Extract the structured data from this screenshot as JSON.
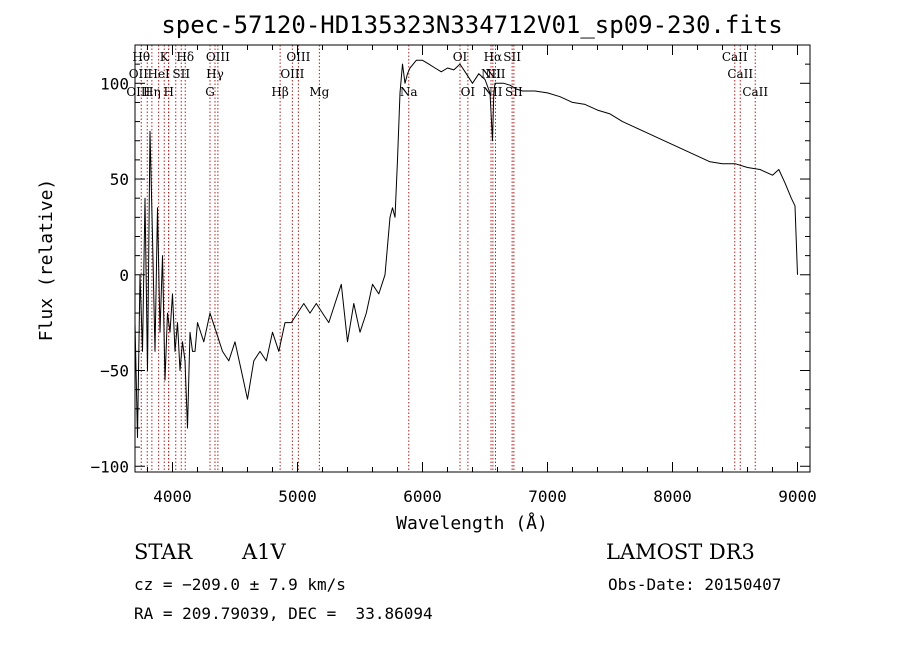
{
  "chart_data": {
    "type": "line",
    "title": "spec-57120-HD135323N334712V01_sp09-230.fits",
    "xlabel": "Wavelength (Å)",
    "ylabel": "Flux (relative)",
    "xlim": [
      3700,
      9100
    ],
    "ylim": [
      -103,
      120
    ],
    "xticks": [
      4000,
      5000,
      6000,
      7000,
      8000,
      9000
    ],
    "yticks": [
      -100,
      -50,
      0,
      50,
      100
    ],
    "xtick_labels": [
      "4000",
      "5000",
      "6000",
      "7000",
      "8000",
      "9000"
    ],
    "ytick_labels": [
      "−100",
      "−50",
      "0",
      "50",
      "100"
    ],
    "series": [
      {
        "name": "flux",
        "x": [
          3700,
          3720,
          3740,
          3760,
          3780,
          3800,
          3820,
          3840,
          3860,
          3880,
          3900,
          3920,
          3940,
          3960,
          3980,
          4000,
          4020,
          4040,
          4060,
          4080,
          4100,
          4120,
          4140,
          4160,
          4180,
          4200,
          4250,
          4300,
          4350,
          4400,
          4450,
          4500,
          4550,
          4600,
          4650,
          4700,
          4750,
          4800,
          4850,
          4900,
          4950,
          5000,
          5050,
          5100,
          5150,
          5200,
          5250,
          5300,
          5350,
          5400,
          5450,
          5500,
          5550,
          5600,
          5650,
          5700,
          5720,
          5740,
          5760,
          5780,
          5800,
          5820,
          5840,
          5860,
          5880,
          5900,
          5950,
          6000,
          6050,
          6100,
          6150,
          6200,
          6250,
          6300,
          6350,
          6400,
          6450,
          6500,
          6540,
          6560,
          6570,
          6580,
          6600,
          6650,
          6700,
          6750,
          6800,
          6900,
          7000,
          7100,
          7200,
          7300,
          7400,
          7500,
          7600,
          7700,
          7800,
          7900,
          8000,
          8100,
          8200,
          8300,
          8400,
          8500,
          8600,
          8700,
          8800,
          8850,
          8900,
          8950,
          8980,
          9000
        ],
        "y": [
          -25,
          -85,
          0,
          -40,
          40,
          -50,
          75,
          20,
          -40,
          35,
          -30,
          10,
          -55,
          -20,
          -30,
          -10,
          -40,
          -25,
          -50,
          -35,
          -45,
          -80,
          -30,
          -40,
          -40,
          -25,
          -35,
          -20,
          -30,
          -40,
          -45,
          -35,
          -50,
          -65,
          -45,
          -40,
          -45,
          -30,
          -40,
          -25,
          -25,
          -20,
          -15,
          -20,
          -15,
          -20,
          -25,
          -15,
          -5,
          -35,
          -15,
          -30,
          -20,
          -5,
          -10,
          0,
          15,
          30,
          35,
          30,
          60,
          95,
          110,
          100,
          105,
          108,
          112,
          112,
          110,
          108,
          106,
          108,
          107,
          110,
          105,
          100,
          105,
          102,
          95,
          70,
          95,
          100,
          100,
          100,
          99,
          97,
          96,
          96,
          95,
          93,
          90,
          89,
          86,
          84,
          80,
          77,
          74,
          71,
          68,
          65,
          62,
          59,
          58,
          58,
          56,
          55,
          52,
          55,
          48,
          40,
          36,
          0
        ]
      }
    ],
    "annotations": {
      "wavelengths": [
        3750,
        3798,
        3835,
        3889,
        3934,
        3968,
        3970,
        4026,
        4070,
        4102,
        4300,
        4340,
        4363,
        4861,
        4959,
        5007,
        5175,
        5890,
        6300,
        6363,
        6548,
        6563,
        6584,
        6717,
        6731,
        8498,
        8542,
        8662
      ],
      "labels": [
        {
          "text": "Hθ",
          "wl": 3750,
          "row": 1
        },
        {
          "text": "K",
          "wl": 3934,
          "row": 1
        },
        {
          "text": "Hδ",
          "wl": 4102,
          "row": 1
        },
        {
          "text": "OIII",
          "wl": 4363,
          "row": 1
        },
        {
          "text": "OIII",
          "wl": 5007,
          "row": 1
        },
        {
          "text": "OI",
          "wl": 6300,
          "row": 1
        },
        {
          "text": "Hα",
          "wl": 6563,
          "row": 1
        },
        {
          "text": "SII",
          "wl": 6717,
          "row": 1
        },
        {
          "text": "CaII",
          "wl": 8498,
          "row": 1
        },
        {
          "text": "OII",
          "wl": 3727,
          "row": 2
        },
        {
          "text": "HeI",
          "wl": 3889,
          "row": 2
        },
        {
          "text": "SII",
          "wl": 4070,
          "row": 2
        },
        {
          "text": "Hγ",
          "wl": 4340,
          "row": 2
        },
        {
          "text": "OIII",
          "wl": 4959,
          "row": 2
        },
        {
          "text": "NII",
          "wl": 6548,
          "row": 2
        },
        {
          "text": "NII",
          "wl": 6584,
          "row": 2
        },
        {
          "text": "CaII",
          "wl": 8542,
          "row": 2
        },
        {
          "text": "OIII",
          "wl": 3727,
          "row": 3
        },
        {
          "text": "Hη",
          "wl": 3835,
          "row": 3
        },
        {
          "text": "H",
          "wl": 3970,
          "row": 3
        },
        {
          "text": "G",
          "wl": 4300,
          "row": 3
        },
        {
          "text": "Hβ",
          "wl": 4861,
          "row": 3
        },
        {
          "text": "Mg",
          "wl": 5175,
          "row": 3
        },
        {
          "text": "Na",
          "wl": 5890,
          "row": 3
        },
        {
          "text": "OI",
          "wl": 6363,
          "row": 3
        },
        {
          "text": "NII",
          "wl": 6560,
          "row": 3
        },
        {
          "text": "SII",
          "wl": 6731,
          "row": 3
        },
        {
          "text": "CaII",
          "wl": 8662,
          "row": 3
        }
      ]
    },
    "colors": {
      "axis": "#000000",
      "line": "#000000",
      "marker": "#b22222"
    }
  },
  "info": {
    "object_class": "STAR",
    "subclass": "A1V",
    "survey": "LAMOST DR3",
    "redshift": "cz = −209.0 ± 7.9 km/s",
    "obs_date": "Obs-Date: 20150407",
    "coords": "RA = 209.79039, DEC =  33.86094"
  }
}
